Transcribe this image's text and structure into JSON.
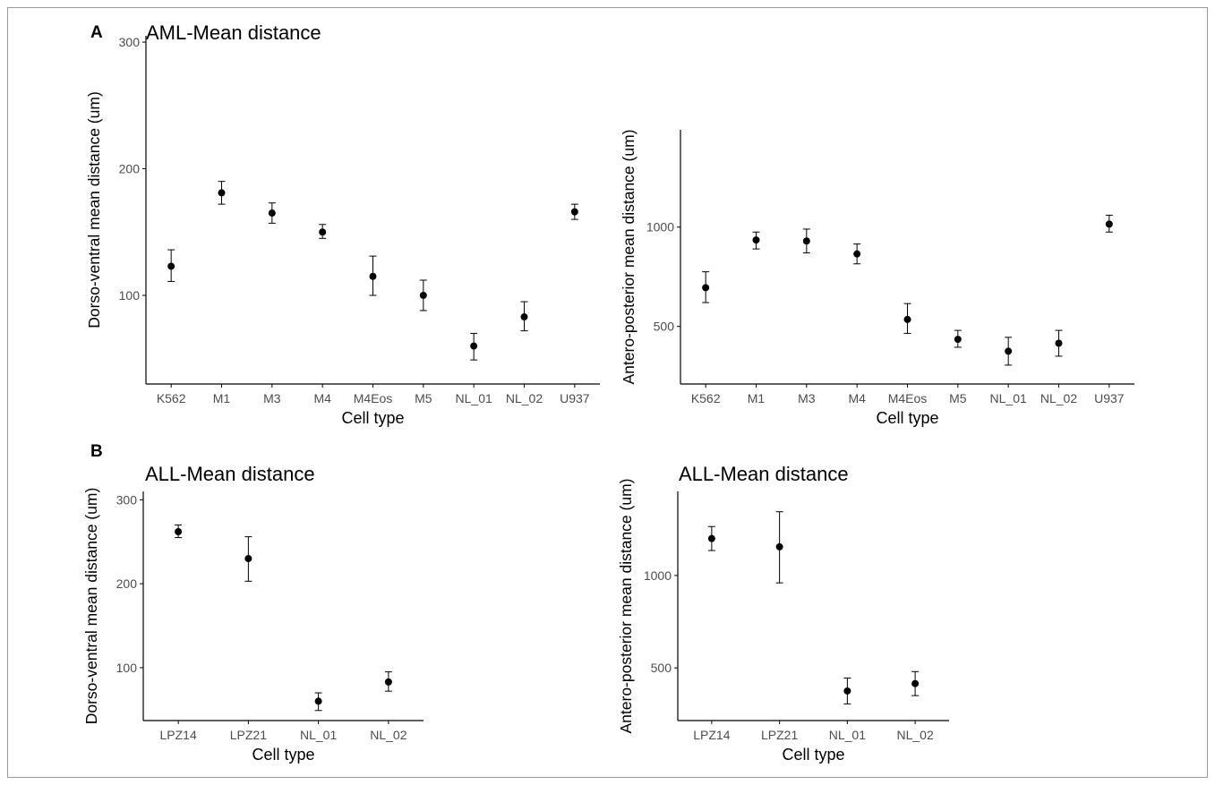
{
  "figure": {
    "panel_labels": [
      "A",
      "B"
    ]
  },
  "colors": {
    "points": "#000000",
    "axis": "#000000",
    "tick_text": "#4d4d4d",
    "frame": "#9a9a9a"
  },
  "chart_data": [
    {
      "type": "scatter",
      "subtype": "point-with-error-bars",
      "title": "AML-Mean distance",
      "xlabel": "Cell type",
      "ylabel": "Dorso-ventral mean distance (um)",
      "categories": [
        "K562",
        "M1",
        "M3",
        "M4",
        "M4Eos",
        "M5",
        "NL_01",
        "NL_02",
        "U937"
      ],
      "values": [
        123,
        181,
        165,
        150,
        115,
        100,
        60,
        83,
        166
      ],
      "error_low": [
        111,
        172,
        157,
        145,
        100,
        88,
        49,
        72,
        160
      ],
      "error_high": [
        136,
        190,
        173,
        156,
        131,
        112,
        70,
        95,
        172
      ],
      "ylim": [
        30,
        305
      ],
      "yticks": [
        100,
        200,
        300
      ],
      "grid": false,
      "legend": "none"
    },
    {
      "type": "scatter",
      "subtype": "point-with-error-bars",
      "title": "",
      "xlabel": "Cell type",
      "ylabel": "Antero-posterior mean distance (um)",
      "categories": [
        "K562",
        "M1",
        "M3",
        "M4",
        "M4Eos",
        "M5",
        "NL_01",
        "NL_02",
        "U937"
      ],
      "values": [
        695,
        935,
        930,
        865,
        535,
        435,
        375,
        415,
        1015
      ],
      "error_low": [
        620,
        890,
        870,
        815,
        465,
        395,
        305,
        350,
        975
      ],
      "error_high": [
        775,
        975,
        990,
        915,
        615,
        480,
        445,
        480,
        1060
      ],
      "ylim": [
        210,
        1490
      ],
      "yticks": [
        500,
        1000
      ],
      "grid": false,
      "legend": "none"
    },
    {
      "type": "scatter",
      "subtype": "point-with-error-bars",
      "title": "ALL-Mean distance",
      "xlabel": "Cell type",
      "ylabel": "Dorso-ventral mean distance (um)",
      "categories": [
        "LPZ14",
        "LPZ21",
        "NL_01",
        "NL_02"
      ],
      "values": [
        262,
        230,
        60,
        83
      ],
      "error_low": [
        255,
        203,
        49,
        72
      ],
      "error_high": [
        270,
        256,
        70,
        95
      ],
      "ylim": [
        37,
        310
      ],
      "yticks": [
        100,
        200,
        300
      ],
      "grid": false,
      "legend": "none"
    },
    {
      "type": "scatter",
      "subtype": "point-with-error-bars",
      "title": "ALL-Mean distance",
      "xlabel": "Cell type",
      "ylabel": "Antero-posterior mean distance (um)",
      "categories": [
        "LPZ14",
        "LPZ21",
        "NL_01",
        "NL_02"
      ],
      "values": [
        1200,
        1155,
        375,
        415
      ],
      "error_low": [
        1135,
        960,
        305,
        350
      ],
      "error_high": [
        1265,
        1345,
        445,
        480
      ],
      "ylim": [
        215,
        1455
      ],
      "yticks": [
        500,
        1000
      ],
      "grid": false,
      "legend": "none"
    }
  ]
}
